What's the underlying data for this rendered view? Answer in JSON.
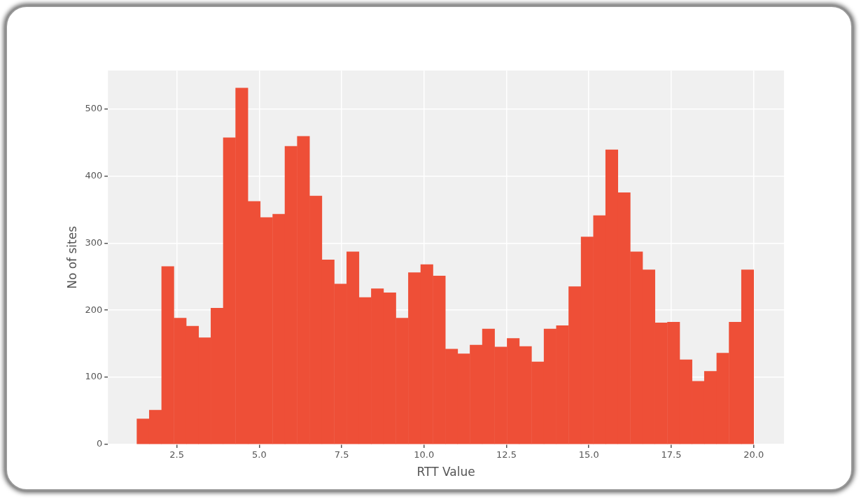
{
  "chart_data": {
    "type": "histogram",
    "xlabel": "RTT Value",
    "ylabel": "No of sites",
    "color": "#ee4f37",
    "bins": [
      1.29,
      1.66,
      2.04,
      2.41,
      2.79,
      3.16,
      3.53,
      3.91,
      4.28,
      4.66,
      5.03,
      5.41,
      5.78,
      6.15,
      6.53,
      6.9,
      7.28,
      7.65,
      8.03,
      8.4,
      8.77,
      9.15,
      9.52,
      9.9,
      10.27,
      10.65,
      11.02,
      11.39,
      11.77,
      12.14,
      12.52,
      12.89,
      13.26,
      13.64,
      14.01,
      14.39,
      14.76,
      15.14,
      15.51,
      15.88,
      16.26,
      16.63,
      17.01,
      17.38,
      17.76,
      18.13,
      18.5,
      18.88,
      19.25,
      19.63,
      20.0
    ],
    "values": [
      38,
      51,
      265,
      188,
      176,
      159,
      203,
      457,
      531,
      362,
      338,
      343,
      444,
      459,
      370,
      275,
      239,
      287,
      219,
      232,
      226,
      188,
      256,
      268,
      251,
      142,
      135,
      148,
      172,
      145,
      158,
      146,
      123,
      172,
      177,
      235,
      309,
      341,
      439,
      375,
      287,
      260,
      181,
      182,
      126,
      94,
      109,
      136,
      182,
      260
    ],
    "xlim": [
      0.41,
      20.92
    ],
    "xticks": [
      {
        "value": 2.5,
        "label": "2.5"
      },
      {
        "value": 5,
        "label": "5.0"
      },
      {
        "value": 7.5,
        "label": "7.5"
      },
      {
        "value": 10,
        "label": "10.0"
      },
      {
        "value": 12.5,
        "label": "12.5"
      },
      {
        "value": 15,
        "label": "15.0"
      },
      {
        "value": 17.5,
        "label": "17.5"
      },
      {
        "value": 20,
        "label": "20.0"
      }
    ],
    "ylim": [
      0,
      557
    ],
    "yticks": [
      0,
      100,
      200,
      300,
      400,
      500
    ],
    "grid": true,
    "legend": false
  }
}
